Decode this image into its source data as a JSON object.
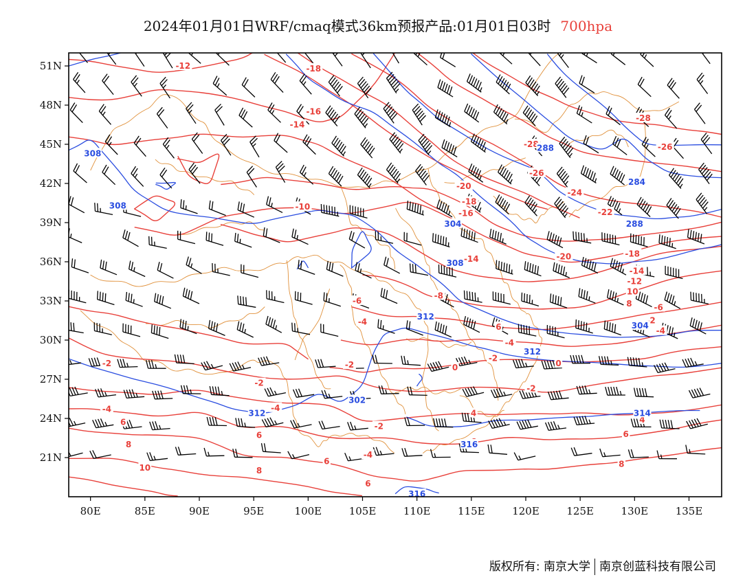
{
  "title": {
    "text": "2024年01月01日WRF/cmaq模式36km预报产品:01月01日03时",
    "level": "700hpa"
  },
  "colors": {
    "temperature": "#e8403a",
    "height": "#2a4de0",
    "border": "#e0903a",
    "wind": "#000000"
  },
  "map": {
    "lon_range": [
      78,
      138
    ],
    "lat_range": [
      18,
      52
    ],
    "lon_ticks": [
      "80E",
      "85E",
      "90E",
      "95E",
      "100E",
      "105E",
      "110E",
      "115E",
      "120E",
      "125E",
      "130E",
      "135E"
    ],
    "lat_ticks": [
      "51N",
      "48N",
      "45N",
      "42N",
      "39N",
      "36N",
      "33N",
      "30N",
      "27N",
      "24N",
      "21N"
    ]
  },
  "temperature_labels": [
    {
      "lon": 88.5,
      "lat": 51,
      "text": "-12"
    },
    {
      "lon": 100.5,
      "lat": 50.8,
      "text": "-18"
    },
    {
      "lon": 100.5,
      "lat": 47.5,
      "text": "-16"
    },
    {
      "lon": 99,
      "lat": 46.5,
      "text": "-14"
    },
    {
      "lon": 99.5,
      "lat": 40.2,
      "text": "-10"
    },
    {
      "lon": 114.3,
      "lat": 41.8,
      "text": "-20"
    },
    {
      "lon": 114.8,
      "lat": 40.6,
      "text": "-18"
    },
    {
      "lon": 114.5,
      "lat": 39.7,
      "text": "-16"
    },
    {
      "lon": 115,
      "lat": 36.2,
      "text": "-14"
    },
    {
      "lon": 112,
      "lat": 33.4,
      "text": "-8"
    },
    {
      "lon": 104.5,
      "lat": 33,
      "text": "-6"
    },
    {
      "lon": 105,
      "lat": 31.4,
      "text": "-4"
    },
    {
      "lon": 103.8,
      "lat": 28.1,
      "text": "-2"
    },
    {
      "lon": 81.5,
      "lat": 28.2,
      "text": "-2"
    },
    {
      "lon": 95.5,
      "lat": 26.7,
      "text": "-2"
    },
    {
      "lon": 97,
      "lat": 24.8,
      "text": "-4"
    },
    {
      "lon": 81.5,
      "lat": 24.7,
      "text": "-4"
    },
    {
      "lon": 83,
      "lat": 23.7,
      "text": "6"
    },
    {
      "lon": 83.5,
      "lat": 22,
      "text": "8"
    },
    {
      "lon": 85,
      "lat": 20.2,
      "text": "10"
    },
    {
      "lon": 95.5,
      "lat": 22.7,
      "text": "6"
    },
    {
      "lon": 95.5,
      "lat": 20,
      "text": "8"
    },
    {
      "lon": 106.5,
      "lat": 23.4,
      "text": "-2"
    },
    {
      "lon": 105.5,
      "lat": 21.2,
      "text": "-4"
    },
    {
      "lon": 105.5,
      "lat": 19,
      "text": "6"
    },
    {
      "lon": 101.7,
      "lat": 20.7,
      "text": "6"
    },
    {
      "lon": 113.5,
      "lat": 27.9,
      "text": "0"
    },
    {
      "lon": 115.2,
      "lat": 24.4,
      "text": "4"
    },
    {
      "lon": 115.2,
      "lat": 22.2,
      "text": "6"
    },
    {
      "lon": 117.5,
      "lat": 31,
      "text": "6"
    },
    {
      "lon": 118.5,
      "lat": 29.8,
      "text": "-4"
    },
    {
      "lon": 117,
      "lat": 28.6,
      "text": "-2"
    },
    {
      "lon": 120.5,
      "lat": 45,
      "text": "-28"
    },
    {
      "lon": 121,
      "lat": 42.8,
      "text": "-26"
    },
    {
      "lon": 123.5,
      "lat": 36.4,
      "text": "-20"
    },
    {
      "lon": 124.5,
      "lat": 41.3,
      "text": "-24"
    },
    {
      "lon": 127.3,
      "lat": 39.8,
      "text": "-22"
    },
    {
      "lon": 130.8,
      "lat": 47,
      "text": "-28"
    },
    {
      "lon": 132.8,
      "lat": 44.8,
      "text": "-26"
    },
    {
      "lon": 129.8,
      "lat": 36.6,
      "text": "-18"
    },
    {
      "lon": 130.2,
      "lat": 35.3,
      "text": "-14"
    },
    {
      "lon": 130,
      "lat": 34.5,
      "text": "-12"
    },
    {
      "lon": 129.8,
      "lat": 33.7,
      "text": "10"
    },
    {
      "lon": 129.5,
      "lat": 32.8,
      "text": "8"
    },
    {
      "lon": 132.2,
      "lat": 32.5,
      "text": "-6"
    },
    {
      "lon": 131.5,
      "lat": 31.5,
      "text": "-2"
    },
    {
      "lon": 132.4,
      "lat": 30.7,
      "text": "-4"
    },
    {
      "lon": 123,
      "lat": 28.2,
      "text": "0"
    },
    {
      "lon": 120.5,
      "lat": 26.3,
      "text": "-2"
    },
    {
      "lon": 130.7,
      "lat": 23.9,
      "text": "4"
    },
    {
      "lon": 129.2,
      "lat": 22.8,
      "text": "6"
    },
    {
      "lon": 128.8,
      "lat": 20.5,
      "text": "8"
    }
  ],
  "height_labels": [
    {
      "lon": 80.2,
      "lat": 44.3,
      "text": "308"
    },
    {
      "lon": 82.5,
      "lat": 40.3,
      "text": "308"
    },
    {
      "lon": 121.8,
      "lat": 44.7,
      "text": "288"
    },
    {
      "lon": 130.2,
      "lat": 42.1,
      "text": "284"
    },
    {
      "lon": 130,
      "lat": 38.9,
      "text": "288"
    },
    {
      "lon": 113.3,
      "lat": 38.9,
      "text": "304"
    },
    {
      "lon": 113.5,
      "lat": 35.9,
      "text": "308"
    },
    {
      "lon": 110.8,
      "lat": 31.8,
      "text": "312"
    },
    {
      "lon": 95.3,
      "lat": 24.4,
      "text": "312"
    },
    {
      "lon": 104.5,
      "lat": 25.4,
      "text": "302"
    },
    {
      "lon": 114.8,
      "lat": 22,
      "text": "316"
    },
    {
      "lon": 110,
      "lat": 18.2,
      "text": "316"
    },
    {
      "lon": 120.6,
      "lat": 29.1,
      "text": "312"
    },
    {
      "lon": 130.5,
      "lat": 31.1,
      "text": "304"
    },
    {
      "lon": 130.7,
      "lat": 24.4,
      "text": "314"
    }
  ],
  "credits": {
    "owner_prefix": "版权所有:",
    "owner_1": "南京大学",
    "owner_2": "南京创蓝科技有限公司"
  }
}
